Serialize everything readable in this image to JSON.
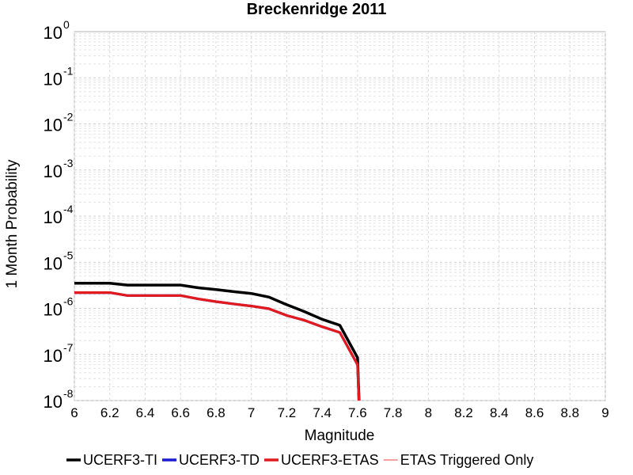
{
  "chart_data": {
    "type": "line",
    "title": "Breckenridge 2011",
    "xlabel": "Magnitude",
    "ylabel": "1 Month Probability",
    "xlim": [
      6,
      9
    ],
    "ylim": [
      1e-08,
      1
    ],
    "yscale": "log",
    "grid": true,
    "legend_position": "bottom",
    "x_ticks": [
      "6",
      "6.2",
      "6.4",
      "6.6",
      "6.8",
      "7",
      "7.2",
      "7.4",
      "7.6",
      "7.8",
      "8",
      "8.2",
      "8.4",
      "8.6",
      "8.8",
      "9"
    ],
    "y_ticks": [
      {
        "base": "10",
        "exp": "0"
      },
      {
        "base": "10",
        "exp": "-1"
      },
      {
        "base": "10",
        "exp": "-2"
      },
      {
        "base": "10",
        "exp": "-3"
      },
      {
        "base": "10",
        "exp": "-4"
      },
      {
        "base": "10",
        "exp": "-5"
      },
      {
        "base": "10",
        "exp": "-6"
      },
      {
        "base": "10",
        "exp": "-7"
      },
      {
        "base": "10",
        "exp": "-8"
      }
    ],
    "series": [
      {
        "name": "UCERF3-TI",
        "color": "#000000",
        "x": [
          6.0,
          6.1,
          6.2,
          6.3,
          6.4,
          6.5,
          6.6,
          6.7,
          6.8,
          6.9,
          7.0,
          7.1,
          7.2,
          7.3,
          7.4,
          7.5,
          7.6,
          7.61
        ],
        "y": [
          3.5e-06,
          3.5e-06,
          3.5e-06,
          3.2e-06,
          3.2e-06,
          3.2e-06,
          3.2e-06,
          2.8e-06,
          2.55e-06,
          2.3e-06,
          2.1e-06,
          1.75e-06,
          1.2e-06,
          8.5e-07,
          5.8e-07,
          4.3e-07,
          8.5e-08,
          7e-09
        ]
      },
      {
        "name": "UCERF3-TD",
        "color": "#1a1ad6",
        "x": [
          6.0,
          6.1,
          6.2,
          6.3,
          6.4,
          6.5,
          6.6,
          6.7,
          6.8,
          6.9,
          7.0,
          7.1,
          7.2,
          7.3,
          7.4,
          7.5,
          7.6,
          7.61
        ],
        "y": [
          2.2e-06,
          2.2e-06,
          2.2e-06,
          1.9e-06,
          1.9e-06,
          1.9e-06,
          1.9e-06,
          1.6e-06,
          1.4e-06,
          1.25e-06,
          1.12e-06,
          9.8e-07,
          7e-07,
          5.5e-07,
          4e-07,
          3e-07,
          6e-08,
          6e-09
        ]
      },
      {
        "name": "UCERF3-ETAS",
        "color": "#e31a1c",
        "x": [
          6.0,
          6.1,
          6.2,
          6.3,
          6.4,
          6.5,
          6.6,
          6.7,
          6.8,
          6.9,
          7.0,
          7.1,
          7.2,
          7.3,
          7.4,
          7.5,
          7.6,
          7.61
        ],
        "y": [
          2.2e-06,
          2.2e-06,
          2.2e-06,
          1.9e-06,
          1.9e-06,
          1.9e-06,
          1.9e-06,
          1.6e-06,
          1.4e-06,
          1.25e-06,
          1.12e-06,
          9.8e-07,
          7e-07,
          5.5e-07,
          4e-07,
          3e-07,
          6e-08,
          6e-09
        ]
      },
      {
        "name": "ETAS Triggered Only",
        "color": "#f4a0a0",
        "x": [],
        "y": []
      }
    ]
  }
}
